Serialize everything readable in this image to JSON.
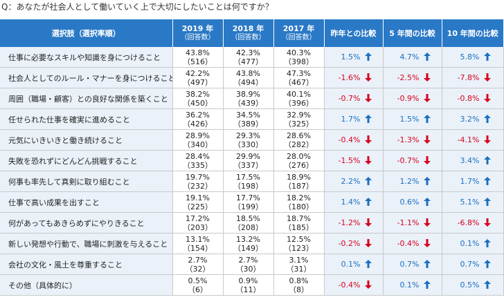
{
  "question": "Q：あなたが社会人として働いていく上で大切にしたいことは何ですか？",
  "headers": {
    "option": "選択肢（選択率順）",
    "y2019": "2019 年",
    "y2018": "2018 年",
    "y2017": "2017 年",
    "respondents": "（回答数）",
    "vs_last_year": "昨年との比較",
    "vs_5yr": "5 年間の比較",
    "vs_10yr": "10 年間の比較"
  },
  "colors": {
    "header_bg": "#2a79c6",
    "label_bg": "#eaf1f9",
    "up": "#1a6fc0",
    "down": "#d9001b"
  },
  "rows": [
    {
      "label": "仕事に必要なスキルや知識を身につけること",
      "p2019": "43.8%",
      "n2019": "（516）",
      "p2018": "42.3%",
      "n2018": "（477）",
      "p2017": "40.3%",
      "n2017": "（398）",
      "c1": "1.5%",
      "d1": "up",
      "c5": "4.7%",
      "d5": "up",
      "c10": "5.8%",
      "d10": "up"
    },
    {
      "label": "社会人としてのルール・マナーを身につけること",
      "p2019": "42.2%",
      "n2019": "（497）",
      "p2018": "43.8%",
      "n2018": "（494）",
      "p2017": "47.3%",
      "n2017": "（467）",
      "c1": "-1.6%",
      "d1": "down",
      "c5": "-2.5%",
      "d5": "down",
      "c10": "-7.8%",
      "d10": "down"
    },
    {
      "label": "周囲（職場・顧客）との良好な関係を築くこと",
      "p2019": "38.2%",
      "n2019": "（450）",
      "p2018": "38.9%",
      "n2018": "（439）",
      "p2017": "40.1%",
      "n2017": "（396）",
      "c1": "-0.7%",
      "d1": "down",
      "c5": "-0.9%",
      "d5": "down",
      "c10": "-0.8%",
      "d10": "down"
    },
    {
      "label": "任せられた仕事を確実に進めること",
      "p2019": "36.2%",
      "n2019": "（426）",
      "p2018": "34.5%",
      "n2018": "（389）",
      "p2017": "32.9%",
      "n2017": "（325）",
      "c1": "1.7%",
      "d1": "up",
      "c5": "1.5%",
      "d5": "up",
      "c10": "3.2%",
      "d10": "up"
    },
    {
      "label": "元気にいきいきと働き続けること",
      "p2019": "28.9%",
      "n2019": "（340）",
      "p2018": "29.3%",
      "n2018": "（330）",
      "p2017": "28.6%",
      "n2017": "（282）",
      "c1": "-0.4%",
      "d1": "down",
      "c5": "-1.3%",
      "d5": "down",
      "c10": "-4.1%",
      "d10": "down"
    },
    {
      "label": "失敗を恐れずにどんどん挑戦すること",
      "p2019": "28.4%",
      "n2019": "（335）",
      "p2018": "29.9%",
      "n2018": "（337）",
      "p2017": "28.0%",
      "n2017": "（276）",
      "c1": "-1.5%",
      "d1": "down",
      "c5": "-0.7%",
      "d5": "down",
      "c10": "3.4%",
      "d10": "up"
    },
    {
      "label": "何事も率先して真剣に取り組むこと",
      "p2019": "19.7%",
      "n2019": "（232）",
      "p2018": "17.5%",
      "n2018": "（198）",
      "p2017": "18.9%",
      "n2017": "（187）",
      "c1": "2.2%",
      "d1": "up",
      "c5": "1.2%",
      "d5": "up",
      "c10": "1.7%",
      "d10": "up"
    },
    {
      "label": "仕事で高い成果を出すこと",
      "p2019": "19.1%",
      "n2019": "（225）",
      "p2018": "17.7%",
      "n2018": "（199）",
      "p2017": "18.2%",
      "n2017": "（180）",
      "c1": "1.4%",
      "d1": "up",
      "c5": "0.6%",
      "d5": "up",
      "c10": "5.1%",
      "d10": "up"
    },
    {
      "label": "何があってもあきらめずにやりきること",
      "p2019": "17.2%",
      "n2019": "（203）",
      "p2018": "18.5%",
      "n2018": "（208）",
      "p2017": "18.7%",
      "n2017": "（185）",
      "c1": "-1.2%",
      "d1": "down",
      "c5": "-1.1%",
      "d5": "down",
      "c10": "-6.8%",
      "d10": "down"
    },
    {
      "label": "新しい発想や行動で、職場に刺激を与えること",
      "p2019": "13.1%",
      "n2019": "（154）",
      "p2018": "13.2%",
      "n2018": "（149）",
      "p2017": "12.5%",
      "n2017": "（123）",
      "c1": "-0.2%",
      "d1": "down",
      "c5": "-0.4%",
      "d5": "down",
      "c10": "0.1%",
      "d10": "up"
    },
    {
      "label": "会社の文化・風土を尊重すること",
      "p2019": "2.7%",
      "n2019": "（32）",
      "p2018": "2.7%",
      "n2018": "（30）",
      "p2017": "3.1%",
      "n2017": "（31）",
      "c1": "0.1%",
      "d1": "up",
      "c5": "0.7%",
      "d5": "up",
      "c10": "0.7%",
      "d10": "up"
    },
    {
      "label": "その他（具体的に）",
      "p2019": "0.5%",
      "n2019": "（6）",
      "p2018": "0.9%",
      "n2018": "（11）",
      "p2017": "0.8%",
      "n2017": "（8）",
      "c1": "-0.4%",
      "d1": "down",
      "c5": "0.1%",
      "d5": "up",
      "c10": "0.5%",
      "d10": "up"
    }
  ]
}
